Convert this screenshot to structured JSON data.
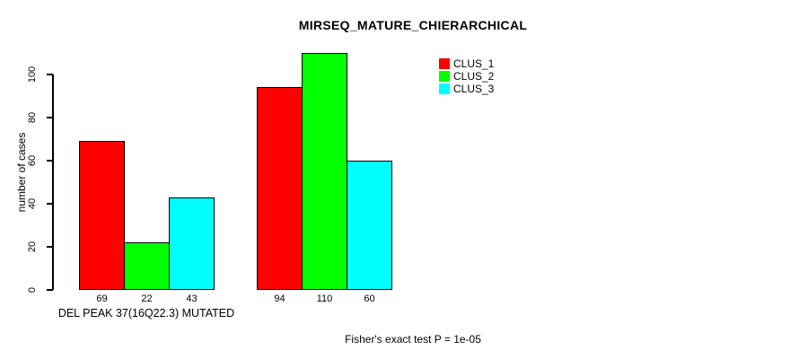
{
  "title": "MIRSEQ_MATURE_CHIERARCHICAL",
  "footnote": "Fisher's exact test P = 1e-05",
  "chart_data": {
    "type": "bar",
    "title": "MIRSEQ_MATURE_CHIERARCHICAL",
    "xlabel": "DEL PEAK 37(16Q22.3) MUTATED",
    "ylabel": "number of cases",
    "categories": [
      "DEL PEAK 37(16Q22.3) MUTATED",
      ""
    ],
    "series": [
      {
        "name": "CLUS_1",
        "color": "#ff0000",
        "values": [
          69,
          94
        ]
      },
      {
        "name": "CLUS_2",
        "color": "#00ff00",
        "values": [
          22,
          110
        ]
      },
      {
        "name": "CLUS_3",
        "color": "#00ffff",
        "values": [
          43,
          60
        ]
      }
    ],
    "bar_value_labels": [
      [
        69,
        22,
        43
      ],
      [
        94,
        110,
        60
      ]
    ],
    "yticks": [
      0,
      20,
      40,
      60,
      80,
      100
    ],
    "ylim": [
      0,
      110
    ],
    "grid": false,
    "legend_position": "top-right",
    "bar_border_color": "#000000",
    "text_color": "#000000",
    "background_color": "#ffffff"
  }
}
